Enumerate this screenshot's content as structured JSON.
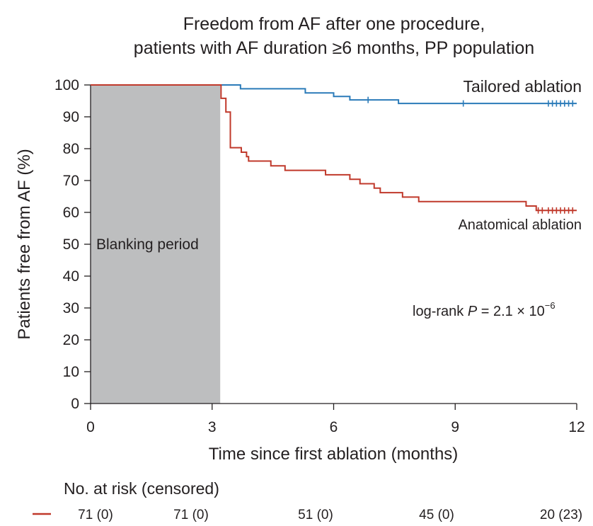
{
  "chart_data": {
    "type": "line",
    "subtype": "kaplan-meier step",
    "title_lines": [
      "Freedom from AF after one procedure,",
      "patients with AF duration ≥6 months, PP population"
    ],
    "xlabel": "Time since first ablation (months)",
    "ylabel": "Patients free from AF (%)",
    "xlim": [
      0,
      12
    ],
    "ylim": [
      0,
      100
    ],
    "xticks": [
      0,
      3,
      6,
      9,
      12
    ],
    "yticks": [
      0,
      10,
      20,
      30,
      40,
      50,
      60,
      70,
      80,
      90,
      100
    ],
    "grid": false,
    "shaded_region": {
      "x": [
        0,
        3.2
      ],
      "label": "Blanking period",
      "color": "#bdbebf"
    },
    "series": [
      {
        "name": "Tailored ablation",
        "color": "#2b7bb9",
        "steps": [
          [
            0,
            100
          ],
          [
            3.7,
            98.8
          ],
          [
            5.3,
            97.5
          ],
          [
            6.0,
            96.4
          ],
          [
            6.4,
            95.3
          ],
          [
            7.6,
            94.2
          ],
          [
            12,
            94.2
          ]
        ],
        "censored_x": [
          6.85,
          9.2,
          11.3,
          11.4,
          11.5,
          11.6,
          11.7,
          11.8,
          11.9
        ]
      },
      {
        "name": "Anatomical ablation",
        "color": "#c0392b",
        "steps": [
          [
            0,
            100
          ],
          [
            3.22,
            95.8
          ],
          [
            3.34,
            91.5
          ],
          [
            3.45,
            80.3
          ],
          [
            3.72,
            78.9
          ],
          [
            3.85,
            77.5
          ],
          [
            3.9,
            76.1
          ],
          [
            4.45,
            74.6
          ],
          [
            4.8,
            73.2
          ],
          [
            5.8,
            71.8
          ],
          [
            6.4,
            70.4
          ],
          [
            6.65,
            69.0
          ],
          [
            7.0,
            67.6
          ],
          [
            7.15,
            66.2
          ],
          [
            7.35,
            66.2
          ],
          [
            7.7,
            64.8
          ],
          [
            8.1,
            63.4
          ],
          [
            10.75,
            62.0
          ],
          [
            11.0,
            60.6
          ],
          [
            12,
            60.6
          ]
        ],
        "censored_x": [
          11.05,
          11.15,
          11.3,
          11.4,
          11.5,
          11.6,
          11.7,
          11.8,
          11.9
        ]
      }
    ],
    "annotation": {
      "prefix": "log-rank ",
      "p_symbol": "P",
      "mid": " = 2.1 × 10",
      "exponent": "−6"
    },
    "risk_table": {
      "header": "No. at risk (censored)",
      "rows": [
        {
          "series": "Anatomical ablation",
          "color": "#c0392b",
          "values": [
            "71 (0)",
            "71 (0)",
            "51 (0)",
            "45 (0)",
            "20 (23)"
          ]
        }
      ]
    }
  }
}
